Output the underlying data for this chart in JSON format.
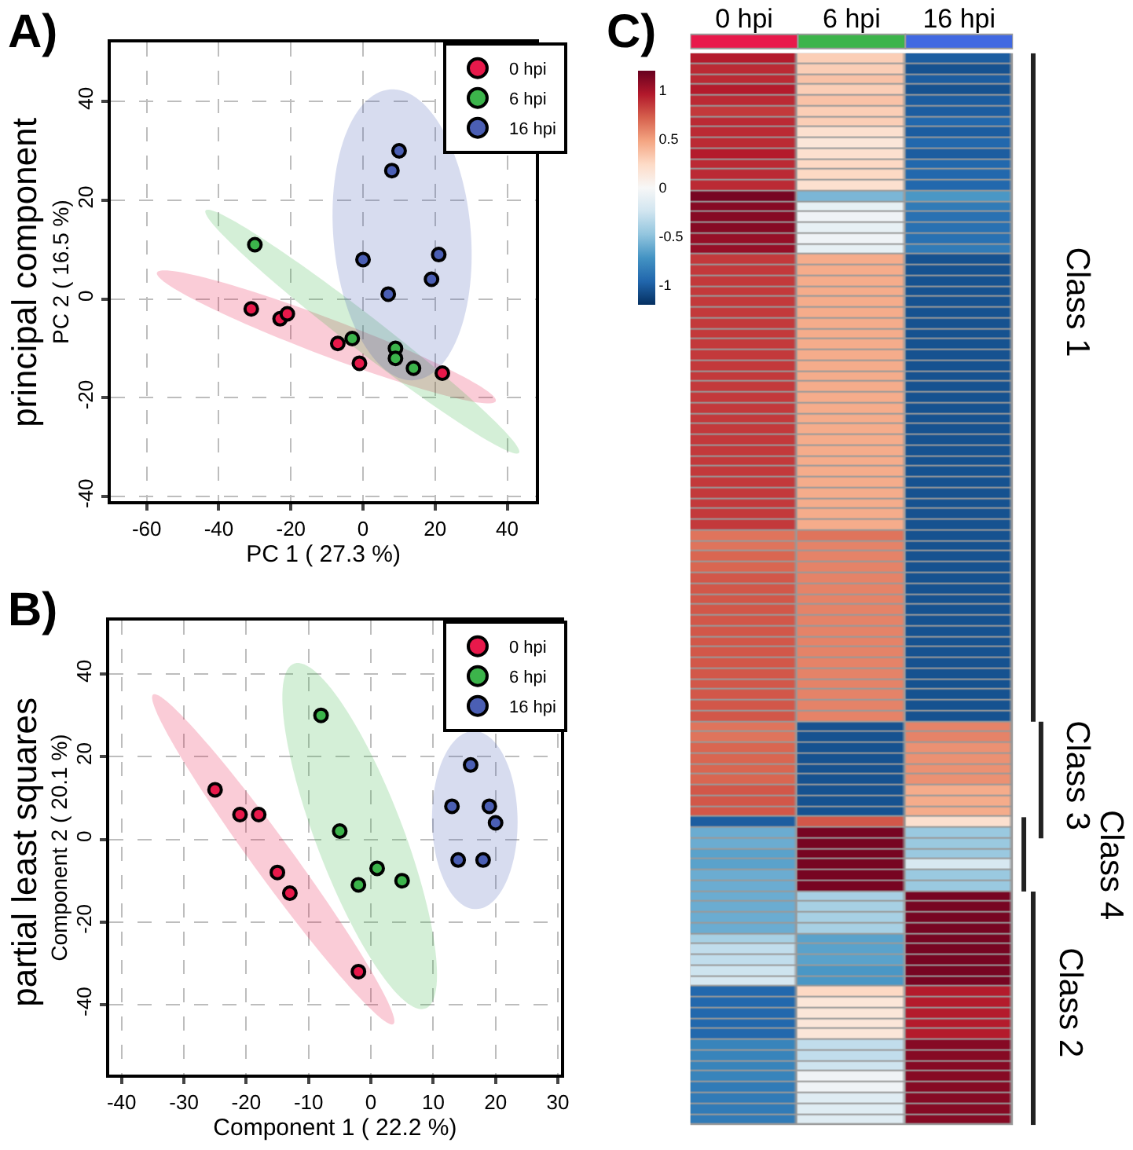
{
  "chart_data": [
    {
      "type": "scatter",
      "xlabel": "PC 1 ( 27.3 %)",
      "ylabel": "PC 2 ( 16.5 %)",
      "annotations": [
        "A)",
        "principal component"
      ],
      "xlim": [
        -70,
        48
      ],
      "ylim": [
        -41,
        52
      ],
      "xticks": [
        -60,
        -40,
        -20,
        0,
        20,
        40
      ],
      "yticks": [
        -40,
        -20,
        0,
        20,
        40
      ],
      "grid": true,
      "legend": "top right",
      "marker": "circle",
      "series": [
        {
          "name": "0 hpi",
          "color": "#e8194b",
          "x": [
            -31,
            -23,
            -21,
            -7,
            -1,
            22
          ],
          "values": [
            -2,
            -4,
            -3,
            -9,
            -13,
            -15
          ]
        },
        {
          "name": "6 hpi",
          "color": "#3cb44b",
          "x": [
            -30,
            -3,
            9,
            9,
            14
          ],
          "values": [
            11,
            -8,
            -10,
            -12,
            -14
          ]
        },
        {
          "name": "16 hpi",
          "color": "#4b5fb4",
          "x": [
            10,
            8,
            0,
            21,
            19,
            7
          ],
          "values": [
            30,
            26,
            8,
            9,
            4,
            1
          ]
        }
      ]
    },
    {
      "type": "scatter",
      "xlabel": "Component 1 ( 22.2 %)",
      "ylabel": "Component 2 ( 20.1 %)",
      "annotations": [
        "B)",
        "partial least squares"
      ],
      "xlim": [
        -42,
        30.5
      ],
      "ylim": [
        -57,
        53
      ],
      "xticks": [
        -40,
        -30,
        -20,
        -10,
        0,
        10,
        20,
        30
      ],
      "yticks": [
        -40,
        -20,
        0,
        20,
        40
      ],
      "grid": true,
      "legend": "top right",
      "marker": "circle",
      "series": [
        {
          "name": "0 hpi",
          "color": "#e8194b",
          "x": [
            -25,
            -21,
            -18,
            -15,
            -13,
            -2
          ],
          "values": [
            12,
            6,
            6,
            -8,
            -13,
            -32
          ]
        },
        {
          "name": "6 hpi",
          "color": "#3cb44b",
          "x": [
            -8,
            -5,
            1,
            -2,
            5
          ],
          "values": [
            30,
            2,
            -7,
            -11,
            -10
          ]
        },
        {
          "name": "16 hpi",
          "color": "#4b5fb4",
          "x": [
            13,
            16,
            19,
            20,
            14,
            18
          ],
          "values": [
            8,
            18,
            8,
            4,
            -5,
            -5
          ]
        }
      ]
    },
    {
      "type": "heatmap",
      "annotations": [
        "C)",
        "Class 1",
        "Class 3",
        "Class 4",
        "Class 2"
      ],
      "categories": [
        "0 hpi",
        "6 hpi",
        "16 hpi"
      ],
      "colors": [
        "#e8194b",
        "#3cb44b",
        "#4169e1"
      ],
      "clim": [
        -1.2,
        1.2
      ],
      "cticks": [
        1,
        0.5,
        0,
        -0.5,
        -1
      ],
      "y_categories": [
        null,
        null,
        null,
        null,
        null,
        null,
        null,
        null,
        null,
        null,
        null,
        null,
        null,
        null,
        null,
        null,
        null,
        null,
        null,
        null,
        null,
        null,
        null,
        null,
        null,
        null,
        null,
        null,
        null,
        null,
        null,
        null,
        null,
        null,
        null,
        null,
        null,
        null,
        null,
        null,
        null,
        null,
        null,
        null,
        null,
        null,
        null,
        null,
        null,
        null,
        null,
        null,
        null,
        null,
        null,
        null,
        null,
        null,
        null,
        null,
        null,
        null,
        null,
        null,
        null,
        null,
        null,
        null,
        null,
        null,
        null,
        null,
        null,
        null,
        null,
        null,
        null,
        null,
        null,
        null,
        null,
        null,
        null,
        null,
        null,
        null,
        null,
        null,
        null,
        null,
        null,
        null,
        null,
        null,
        null,
        null,
        null,
        null,
        null,
        null,
        null
      ],
      "cells": [
        [
          0.95,
          0.3,
          -1.0
        ],
        [
          0.9,
          0.3,
          -1.05
        ],
        [
          0.9,
          0.35,
          -1.0
        ],
        [
          0.95,
          0.3,
          -1.05
        ],
        [
          0.9,
          0.35,
          -1.0
        ],
        [
          0.85,
          0.3,
          -1.0
        ],
        [
          0.9,
          0.3,
          -0.95
        ],
        [
          0.9,
          0.2,
          -1.0
        ],
        [
          0.9,
          0.15,
          -0.95
        ],
        [
          0.95,
          0.2,
          -1.0
        ],
        [
          0.9,
          0.25,
          -0.95
        ],
        [
          0.9,
          0.25,
          -0.95
        ],
        [
          0.9,
          0.2,
          -0.95
        ],
        [
          1.15,
          -0.55,
          -0.7
        ],
        [
          1.1,
          -0.1,
          -0.85
        ],
        [
          1.1,
          -0.05,
          -0.9
        ],
        [
          1.1,
          -0.1,
          -0.9
        ],
        [
          1.05,
          -0.05,
          -0.9
        ],
        [
          1.05,
          -0.1,
          -0.85
        ],
        [
          0.85,
          0.45,
          -1.05
        ],
        [
          0.85,
          0.45,
          -1.05
        ],
        [
          0.85,
          0.45,
          -1.05
        ],
        [
          0.85,
          0.45,
          -1.05
        ],
        [
          0.85,
          0.45,
          -1.05
        ],
        [
          0.85,
          0.45,
          -1.05
        ],
        [
          0.85,
          0.45,
          -1.05
        ],
        [
          0.85,
          0.45,
          -1.05
        ],
        [
          0.85,
          0.45,
          -1.05
        ],
        [
          0.85,
          0.45,
          -1.05
        ],
        [
          0.85,
          0.45,
          -1.05
        ],
        [
          0.85,
          0.45,
          -1.05
        ],
        [
          0.85,
          0.45,
          -1.05
        ],
        [
          0.85,
          0.45,
          -1.05
        ],
        [
          0.85,
          0.45,
          -1.05
        ],
        [
          0.85,
          0.45,
          -1.05
        ],
        [
          0.85,
          0.45,
          -1.05
        ],
        [
          0.85,
          0.45,
          -1.05
        ],
        [
          0.85,
          0.45,
          -1.05
        ],
        [
          0.85,
          0.45,
          -1.05
        ],
        [
          0.85,
          0.45,
          -1.05
        ],
        [
          0.85,
          0.45,
          -1.05
        ],
        [
          0.85,
          0.45,
          -1.05
        ],
        [
          0.85,
          0.45,
          -1.05
        ],
        [
          0.85,
          0.45,
          -1.05
        ],
        [
          0.85,
          0.45,
          -1.05
        ],
        [
          0.65,
          0.65,
          -1.05
        ],
        [
          0.65,
          0.6,
          -1.05
        ],
        [
          0.7,
          0.6,
          -1.05
        ],
        [
          0.7,
          0.6,
          -1.05
        ],
        [
          0.75,
          0.6,
          -1.05
        ],
        [
          0.75,
          0.6,
          -1.05
        ],
        [
          0.75,
          0.6,
          -1.05
        ],
        [
          0.75,
          0.6,
          -1.05
        ],
        [
          0.75,
          0.6,
          -1.05
        ],
        [
          0.75,
          0.6,
          -1.05
        ],
        [
          0.75,
          0.6,
          -1.05
        ],
        [
          0.75,
          0.6,
          -1.05
        ],
        [
          0.75,
          0.6,
          -1.05
        ],
        [
          0.75,
          0.6,
          -1.05
        ],
        [
          0.75,
          0.6,
          -1.05
        ],
        [
          0.75,
          0.6,
          -1.05
        ],
        [
          0.75,
          0.6,
          -1.05
        ],
        [
          0.75,
          0.6,
          -1.05
        ],
        [
          0.65,
          -1.05,
          0.6
        ],
        [
          0.65,
          -1.05,
          0.6
        ],
        [
          0.7,
          -1.05,
          0.55
        ],
        [
          0.7,
          -1.05,
          0.55
        ],
        [
          0.7,
          -1.05,
          0.55
        ],
        [
          0.7,
          -1.05,
          0.55
        ],
        [
          0.75,
          -1.05,
          0.45
        ],
        [
          0.75,
          -1.05,
          0.45
        ],
        [
          0.75,
          -1.05,
          0.45
        ],
        [
          -1.0,
          0.75,
          0.2
        ],
        [
          -0.6,
          1.15,
          -0.45
        ],
        [
          -0.6,
          1.15,
          -0.45
        ],
        [
          -0.65,
          1.15,
          -0.45
        ],
        [
          -0.65,
          1.15,
          -0.2
        ],
        [
          -0.6,
          1.15,
          -0.45
        ],
        [
          -0.6,
          1.15,
          -0.45
        ],
        [
          -0.6,
          -0.4,
          1.15
        ],
        [
          -0.6,
          -0.4,
          1.15
        ],
        [
          -0.6,
          -0.4,
          1.15
        ],
        [
          -0.6,
          -0.4,
          1.15
        ],
        [
          -0.4,
          -0.65,
          1.15
        ],
        [
          -0.3,
          -0.65,
          1.15
        ],
        [
          -0.3,
          -0.65,
          1.15
        ],
        [
          -0.25,
          -0.7,
          1.15
        ],
        [
          -0.2,
          -0.7,
          1.15
        ],
        [
          -0.95,
          0.25,
          0.95
        ],
        [
          -0.95,
          0.15,
          0.95
        ],
        [
          -0.95,
          0.15,
          0.95
        ],
        [
          -0.95,
          0.15,
          0.95
        ],
        [
          -0.95,
          0.15,
          0.95
        ],
        [
          -0.8,
          -0.3,
          1.1
        ],
        [
          -0.8,
          -0.3,
          1.1
        ],
        [
          -0.8,
          -0.25,
          1.1
        ],
        [
          -0.8,
          -0.05,
          1.1
        ],
        [
          -0.85,
          -0.05,
          1.1
        ],
        [
          -0.85,
          -0.15,
          1.1
        ],
        [
          -0.85,
          -0.15,
          1.1
        ],
        [
          -0.85,
          -0.15,
          1.1
        ]
      ]
    }
  ]
}
